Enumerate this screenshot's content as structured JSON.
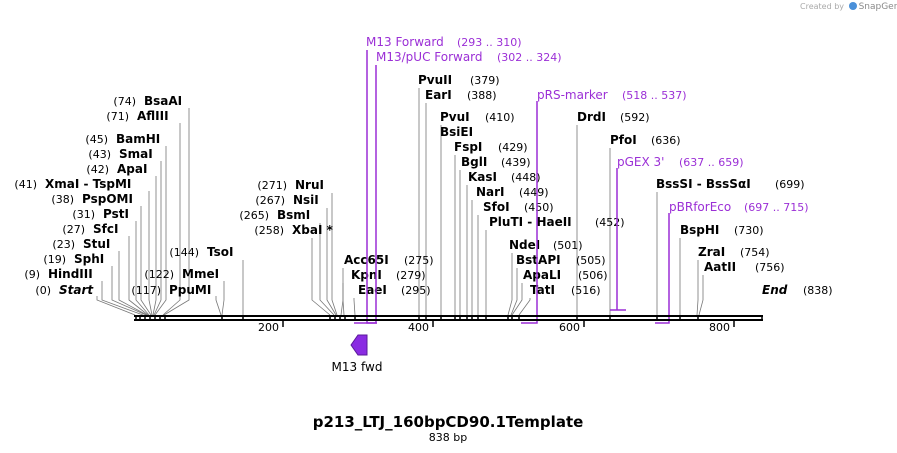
{
  "credit": {
    "prefix": "Created by",
    "brand": "SnapGene"
  },
  "title": "p213_LTJ_160bpCD90.1Template",
  "length_label": "838 bp",
  "ticks": [
    "200",
    "400",
    "600",
    "800"
  ],
  "feature": {
    "label": "M13 fwd"
  },
  "colors": {
    "primer": "#9b2fd6",
    "feature": "#8a2be2",
    "line": "#000000"
  },
  "sites": [
    {
      "name": "BsaAI",
      "pos": "(74)"
    },
    {
      "name": "AflIII",
      "pos": "(71)"
    },
    {
      "name": "BamHI",
      "pos": "(45)"
    },
    {
      "name": "SmaI",
      "pos": "(43)"
    },
    {
      "name": "ApaI",
      "pos": "(42)"
    },
    {
      "name": "XmaI - TspMI",
      "pos": "(41)"
    },
    {
      "name": "PspOMI",
      "pos": "(38)"
    },
    {
      "name": "PstI",
      "pos": "(31)"
    },
    {
      "name": "SfcI",
      "pos": "(27)"
    },
    {
      "name": "StuI",
      "pos": "(23)"
    },
    {
      "name": "SphI",
      "pos": "(19)"
    },
    {
      "name": "HindIII",
      "pos": "(9)"
    },
    {
      "name": "Start",
      "pos": "(0)"
    },
    {
      "name": "TsoI",
      "pos": "(144)"
    },
    {
      "name": "MmeI",
      "pos": "(122)"
    },
    {
      "name": "PpuMI",
      "pos": "(117)"
    },
    {
      "name": "NruI",
      "pos": "(271)"
    },
    {
      "name": "NsiI",
      "pos": "(267)"
    },
    {
      "name": "BsmI",
      "pos": "(265)"
    },
    {
      "name": "XbaI *",
      "pos": "(258)"
    },
    {
      "name": "Acc65I",
      "pos": "(275)"
    },
    {
      "name": "KpnI",
      "pos": "(279)"
    },
    {
      "name": "EaeI",
      "pos": "(295)"
    },
    {
      "name": "PvuII",
      "pos": "(379)"
    },
    {
      "name": "EarI",
      "pos": "(388)"
    },
    {
      "name": "PvuI",
      "pos": "(410)"
    },
    {
      "name": "BsiEI",
      "pos": ""
    },
    {
      "name": "FspI",
      "pos": "(429)"
    },
    {
      "name": "BglI",
      "pos": "(439)"
    },
    {
      "name": "KasI",
      "pos": "(448)"
    },
    {
      "name": "NarI",
      "pos": "(449)"
    },
    {
      "name": "SfoI",
      "pos": "(450)"
    },
    {
      "name": "PluTI - HaeII",
      "pos": "(452)"
    },
    {
      "name": "NdeI",
      "pos": "(501)"
    },
    {
      "name": "BstAPI",
      "pos": "(505)"
    },
    {
      "name": "ApaLI",
      "pos": "(506)"
    },
    {
      "name": "TatI",
      "pos": "(516)"
    },
    {
      "name": "DrdI",
      "pos": "(592)"
    },
    {
      "name": "PfoI",
      "pos": "(636)"
    },
    {
      "name": "BssSI - BssSαI",
      "pos": "(699)"
    },
    {
      "name": "BspHI",
      "pos": "(730)"
    },
    {
      "name": "ZraI",
      "pos": "(754)"
    },
    {
      "name": "AatII",
      "pos": "(756)"
    },
    {
      "name": "End",
      "pos": "(838)"
    }
  ],
  "primers": [
    {
      "name": "M13 Forward",
      "range": "(293 .. 310)"
    },
    {
      "name": "M13/pUC Forward",
      "range": "(302 .. 324)"
    },
    {
      "name": "pRS-marker",
      "range": "(518 .. 537)"
    },
    {
      "name": "pGEX 3'",
      "range": "(637 .. 659)"
    },
    {
      "name": "pBRforEco",
      "range": "(697 .. 715)"
    }
  ]
}
